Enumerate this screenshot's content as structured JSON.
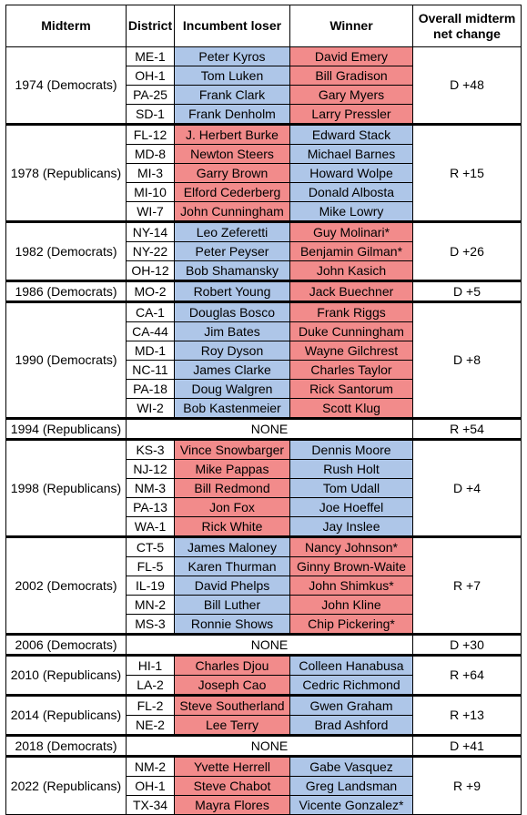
{
  "headers": {
    "midterm": "Midterm",
    "district": "District",
    "loser": "Incumbent loser",
    "winner": "Winner",
    "net_change_line1": "Overall midterm",
    "net_change_line2": "net change"
  },
  "colors": {
    "democrat": "#aec6e8",
    "republican": "#f28b8b"
  },
  "midterms": [
    {
      "label": "1974 (Democrats)",
      "net": "D +48",
      "rows": [
        {
          "district": "ME-1",
          "loser": "Peter Kyros",
          "loser_party": "D",
          "winner": "David Emery",
          "winner_party": "R"
        },
        {
          "district": "OH-1",
          "loser": "Tom Luken",
          "loser_party": "D",
          "winner": "Bill Gradison",
          "winner_party": "R"
        },
        {
          "district": "PA-25",
          "loser": "Frank Clark",
          "loser_party": "D",
          "winner": "Gary Myers",
          "winner_party": "R"
        },
        {
          "district": "SD-1",
          "loser": "Frank Denholm",
          "loser_party": "D",
          "winner": "Larry Pressler",
          "winner_party": "R"
        }
      ]
    },
    {
      "label": "1978 (Republicans)",
      "net": "R +15",
      "rows": [
        {
          "district": "FL-12",
          "loser": "J. Herbert Burke",
          "loser_party": "R",
          "winner": "Edward Stack",
          "winner_party": "D"
        },
        {
          "district": "MD-8",
          "loser": "Newton Steers",
          "loser_party": "R",
          "winner": "Michael Barnes",
          "winner_party": "D"
        },
        {
          "district": "MI-3",
          "loser": "Garry Brown",
          "loser_party": "R",
          "winner": "Howard Wolpe",
          "winner_party": "D"
        },
        {
          "district": "MI-10",
          "loser": "Elford Cederberg",
          "loser_party": "R",
          "winner": "Donald Albosta",
          "winner_party": "D"
        },
        {
          "district": "WI-7",
          "loser": "John Cunningham",
          "loser_party": "R",
          "winner": "Mike Lowry",
          "winner_party": "D"
        }
      ]
    },
    {
      "label": "1982 (Democrats)",
      "net": "D +26",
      "rows": [
        {
          "district": "NY-14",
          "loser": "Leo Zeferetti",
          "loser_party": "D",
          "winner": "Guy Molinari*",
          "winner_party": "R"
        },
        {
          "district": "NY-22",
          "loser": "Peter Peyser",
          "loser_party": "D",
          "winner": "Benjamin Gilman*",
          "winner_party": "R"
        },
        {
          "district": "OH-12",
          "loser": "Bob Shamansky",
          "loser_party": "D",
          "winner": "John Kasich",
          "winner_party": "R"
        }
      ]
    },
    {
      "label": "1986 (Democrats)",
      "net": "D +5",
      "rows": [
        {
          "district": "MO-2",
          "loser": "Robert Young",
          "loser_party": "D",
          "winner": "Jack Buechner",
          "winner_party": "R"
        }
      ]
    },
    {
      "label": "1990 (Democrats)",
      "net": "D +8",
      "rows": [
        {
          "district": "CA-1",
          "loser": "Douglas Bosco",
          "loser_party": "D",
          "winner": "Frank Riggs",
          "winner_party": "R"
        },
        {
          "district": "CA-44",
          "loser": "Jim Bates",
          "loser_party": "D",
          "winner": "Duke Cunningham",
          "winner_party": "R"
        },
        {
          "district": "MD-1",
          "loser": "Roy Dyson",
          "loser_party": "D",
          "winner": "Wayne Gilchrest",
          "winner_party": "R"
        },
        {
          "district": "NC-11",
          "loser": "James Clarke",
          "loser_party": "D",
          "winner": "Charles Taylor",
          "winner_party": "R"
        },
        {
          "district": "PA-18",
          "loser": "Doug Walgren",
          "loser_party": "D",
          "winner": "Rick Santorum",
          "winner_party": "R"
        },
        {
          "district": "WI-2",
          "loser": "Bob Kastenmeier",
          "loser_party": "D",
          "winner": "Scott Klug",
          "winner_party": "R"
        }
      ]
    },
    {
      "label": "1994 (Republicans)",
      "net": "R +54",
      "none": "NONE",
      "rows": []
    },
    {
      "label": "1998 (Republicans)",
      "net": "D +4",
      "rows": [
        {
          "district": "KS-3",
          "loser": "Vince Snowbarger",
          "loser_party": "R",
          "winner": "Dennis Moore",
          "winner_party": "D"
        },
        {
          "district": "NJ-12",
          "loser": "Mike Pappas",
          "loser_party": "R",
          "winner": "Rush Holt",
          "winner_party": "D"
        },
        {
          "district": "NM-3",
          "loser": "Bill Redmond",
          "loser_party": "R",
          "winner": "Tom Udall",
          "winner_party": "D"
        },
        {
          "district": "PA-13",
          "loser": "Jon Fox",
          "loser_party": "R",
          "winner": "Joe Hoeffel",
          "winner_party": "D"
        },
        {
          "district": "WA-1",
          "loser": "Rick White",
          "loser_party": "R",
          "winner": "Jay Inslee",
          "winner_party": "D"
        }
      ]
    },
    {
      "label": "2002 (Democrats)",
      "net": "R +7",
      "rows": [
        {
          "district": "CT-5",
          "loser": "James Maloney",
          "loser_party": "D",
          "winner": "Nancy Johnson*",
          "winner_party": "R"
        },
        {
          "district": "FL-5",
          "loser": "Karen Thurman",
          "loser_party": "D",
          "winner": "Ginny Brown-Waite",
          "winner_party": "R"
        },
        {
          "district": "IL-19",
          "loser": "David Phelps",
          "loser_party": "D",
          "winner": "John Shimkus*",
          "winner_party": "R"
        },
        {
          "district": "MN-2",
          "loser": "Bill Luther",
          "loser_party": "D",
          "winner": "John Kline",
          "winner_party": "R"
        },
        {
          "district": "MS-3",
          "loser": "Ronnie Shows",
          "loser_party": "D",
          "winner": "Chip Pickering*",
          "winner_party": "R"
        }
      ]
    },
    {
      "label": "2006 (Democrats)",
      "net": "D +30",
      "none": "NONE",
      "rows": []
    },
    {
      "label": "2010 (Republicans)",
      "net": "R +64",
      "rows": [
        {
          "district": "HI-1",
          "loser": "Charles Djou",
          "loser_party": "R",
          "winner": "Colleen Hanabusa",
          "winner_party": "D"
        },
        {
          "district": "LA-2",
          "loser": "Joseph Cao",
          "loser_party": "R",
          "winner": "Cedric Richmond",
          "winner_party": "D"
        }
      ]
    },
    {
      "label": "2014 (Republicans)",
      "net": "R +13",
      "rows": [
        {
          "district": "FL-2",
          "loser": "Steve Southerland",
          "loser_party": "R",
          "winner": "Gwen Graham",
          "winner_party": "D"
        },
        {
          "district": "NE-2",
          "loser": "Lee Terry",
          "loser_party": "R",
          "winner": "Brad Ashford",
          "winner_party": "D"
        }
      ]
    },
    {
      "label": "2018 (Democrats)",
      "net": "D +41",
      "none": "NONE",
      "rows": []
    },
    {
      "label": "2022 (Republicans)",
      "net": "R +9",
      "rows": [
        {
          "district": "NM-2",
          "loser": "Yvette Herrell",
          "loser_party": "R",
          "winner": "Gabe Vasquez",
          "winner_party": "D"
        },
        {
          "district": "OH-1",
          "loser": "Steve Chabot",
          "loser_party": "R",
          "winner": "Greg Landsman",
          "winner_party": "D"
        },
        {
          "district": "TX-34",
          "loser": "Mayra Flores",
          "loser_party": "R",
          "winner": "Vicente Gonzalez*",
          "winner_party": "D"
        }
      ]
    }
  ]
}
